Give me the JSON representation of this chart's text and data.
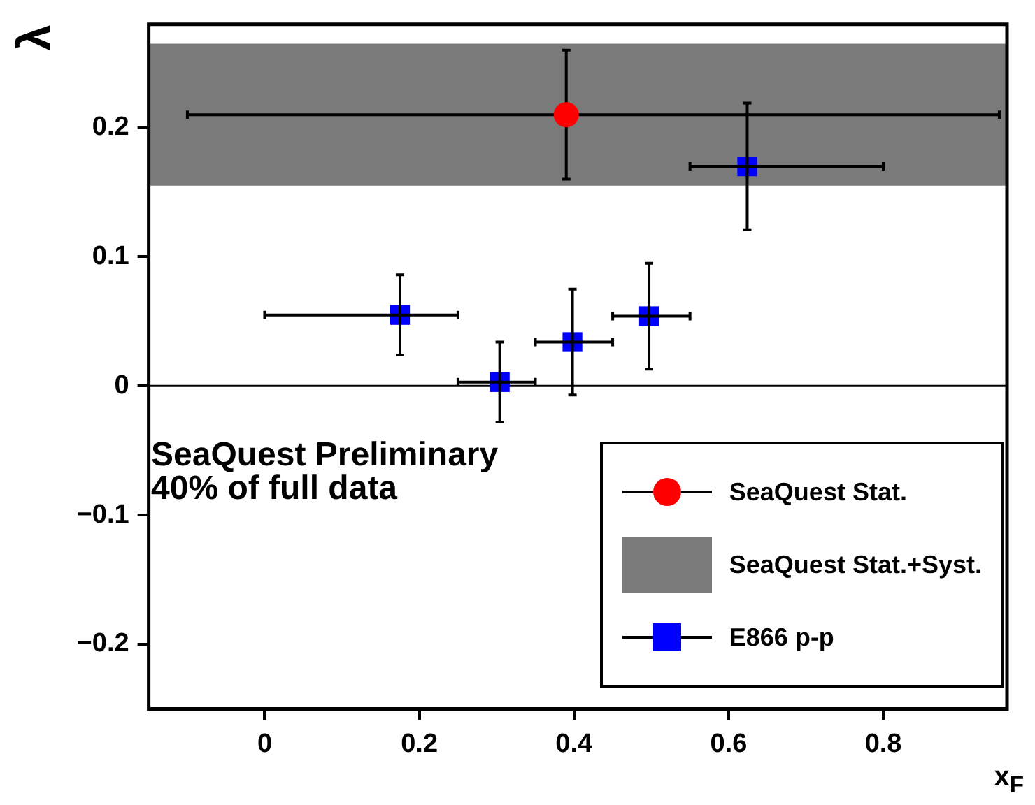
{
  "chart_data": {
    "type": "scatter",
    "xlabel": "x$_{F}$",
    "ylabel": "λ",
    "xlim": [
      -0.15,
      0.96
    ],
    "ylim": [
      -0.25,
      0.28
    ],
    "xticks": [
      0,
      0.2,
      0.4,
      0.6,
      0.8
    ],
    "yticks": [
      {
        "value": -0.2,
        "label": "−0.2"
      },
      {
        "value": -0.1,
        "label": "−0.1"
      },
      0,
      0.1,
      0.2
    ],
    "grid": false,
    "legend": "bottom right",
    "series": [
      {
        "name": "SeaQuest Stat.",
        "color": "#ff0000",
        "marker": "circle",
        "x": [
          0.39
        ],
        "values": [
          0.21
        ],
        "errors": [
          0.05
        ],
        "xerrors": [
          [
            -0.1,
            0.95
          ]
        ]
      },
      {
        "name": "E866 p-p",
        "color": "#0000ff",
        "marker": "square",
        "x": [
          0.175,
          0.304,
          0.398,
          0.497,
          0.624
        ],
        "values": [
          0.055,
          0.003,
          0.034,
          0.054,
          0.17
        ],
        "errors": [
          0.031,
          0.031,
          0.041,
          0.041,
          0.049
        ],
        "xerrors": [
          [
            0.0,
            0.25
          ],
          [
            0.25,
            0.35
          ],
          [
            0.35,
            0.45
          ],
          [
            0.45,
            0.55
          ],
          [
            0.55,
            0.8
          ]
        ]
      }
    ],
    "bands": [
      {
        "axis": "y",
        "from": 0.155,
        "to": 0.265,
        "label": "SeaQuest Stat.+Syst.",
        "color": "#7a7a7a"
      }
    ],
    "ref_lines": [
      {
        "axis": "y",
        "value": 0
      }
    ],
    "annotations": [
      "SeaQuest Preliminary",
      "40% of full data"
    ]
  }
}
